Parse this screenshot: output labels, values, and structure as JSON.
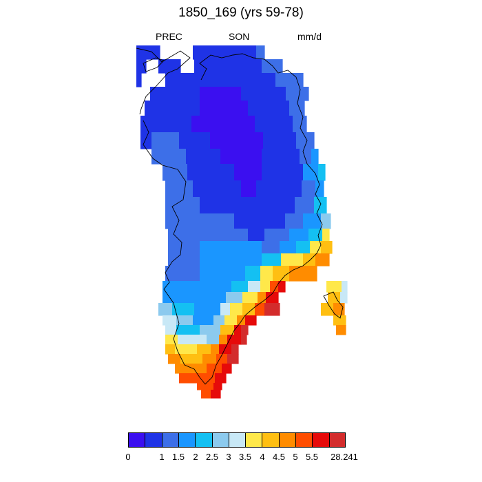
{
  "title": "1850_169 (yrs 59-78)",
  "variable": "PREC",
  "season": "SON",
  "units": "mm/d",
  "colorbar": {
    "colors": [
      "#3b0ff0",
      "#1f33e6",
      "#3d6fe8",
      "#1a96ff",
      "#14c0f2",
      "#8ccaee",
      "#c8e8f6",
      "#ffe84a",
      "#ffbf12",
      "#ff8c00",
      "#ff4d00",
      "#e60a0a",
      "#d32c2c"
    ],
    "labels": [
      "0",
      "1",
      "1.5",
      "2",
      "2.5",
      "3",
      "3.5",
      "4",
      "4.5",
      "5",
      "5.5",
      "28.241"
    ]
  },
  "map_data": {
    "region": "Greenland",
    "field": "precipitation",
    "pattern": "lowest values (0–1) over central/northern interior, increasing toward coasts; highest (5.5–28.241) along south-east coast and southern tip"
  }
}
